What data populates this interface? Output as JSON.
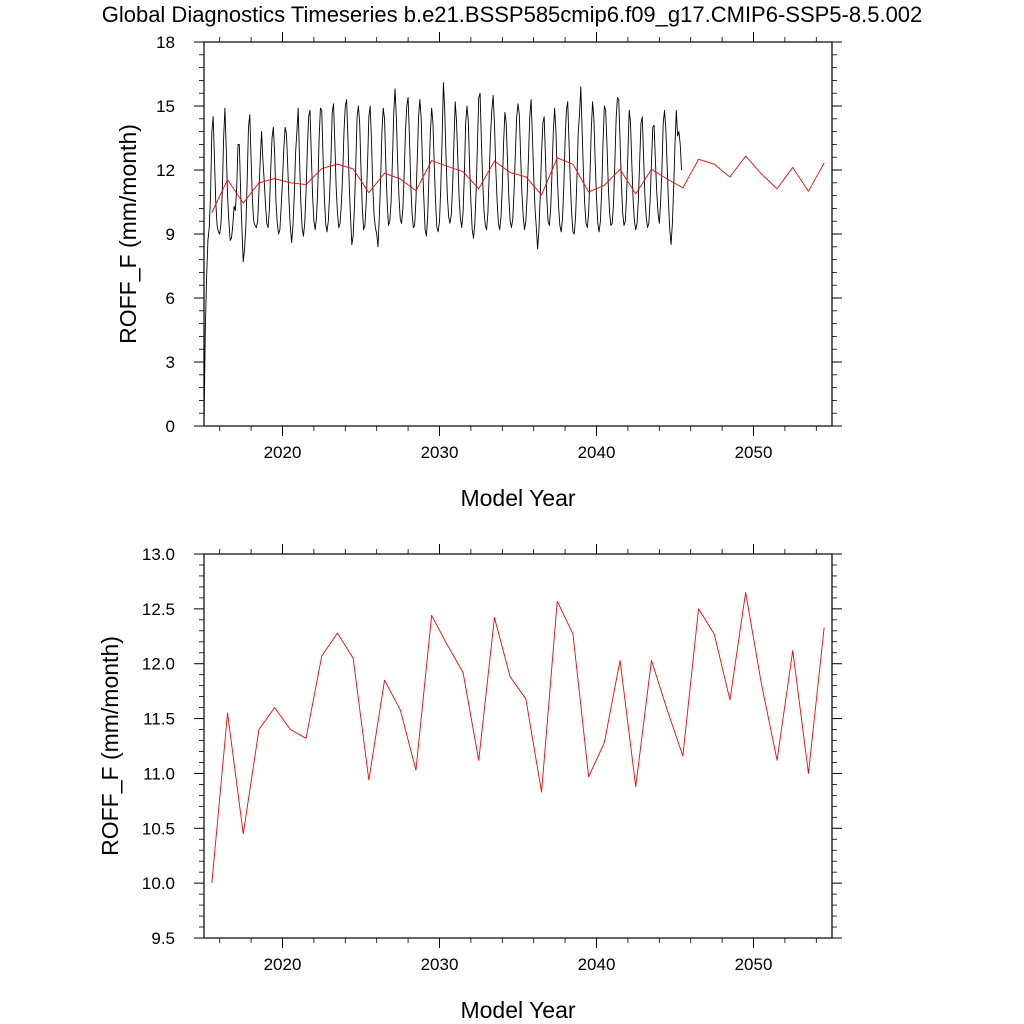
{
  "title": "Global Diagnostics Timeseries b.e21.BSSP585cmip6.f09_g17.CMIP6-SSP5-8.5.002",
  "colors": {
    "monthly": "#000000",
    "annual": "#ff0000",
    "axis": "#000000"
  },
  "chart_data": [
    {
      "type": "line",
      "xlabel": "Model Year",
      "ylabel": "ROFF_F (mm/month)",
      "xlim": [
        2015.0,
        2055.0
      ],
      "ylim": [
        0,
        18
      ],
      "x_ticks": [
        2020,
        2030,
        2040,
        2050
      ],
      "x_tick_labels": [
        "2020",
        "2030",
        "2040",
        "2050"
      ],
      "y_ticks": [
        0,
        3,
        6,
        9,
        12,
        15,
        18
      ],
      "y_tick_labels": [
        "0",
        "3",
        "6",
        "9",
        "12",
        "15",
        "18"
      ],
      "grid": false,
      "series": [
        {
          "color": "#000000",
          "x_start": 2015.0,
          "x_step": 0.083333,
          "values": [
            0.1,
            4.5,
            7.0,
            8.7,
            9.3,
            10.8,
            13.8,
            14.5,
            12.5,
            10.5,
            9.4,
            9.1,
            9.0,
            9.5,
            11.0,
            13.5,
            14.9,
            13.0,
            10.8,
            9.6,
            8.7,
            8.8,
            9.4,
            10.3,
            10.1,
            11.2,
            13.2,
            13.2,
            11.0,
            9.2,
            7.7,
            8.3,
            9.4,
            11.5,
            14.0,
            14.6,
            12.5,
            10.6,
            9.6,
            9.4,
            9.3,
            9.6,
            11.0,
            12.5,
            13.8,
            12.5,
            11.5,
            10.4,
            9.5,
            9.3,
            10.2,
            12.0,
            13.5,
            14.0,
            12.8,
            10.5,
            9.5,
            9.0,
            9.2,
            10.3,
            11.5,
            13.0,
            14.0,
            13.7,
            12.2,
            10.5,
            9.3,
            8.6,
            9.4,
            10.8,
            12.8,
            13.8,
            14.9,
            12.5,
            10.5,
            9.3,
            8.9,
            9.5,
            11.0,
            13.0,
            14.5,
            14.8,
            12.8,
            10.8,
            9.6,
            9.2,
            9.8,
            11.2,
            13.5,
            14.9,
            14.8,
            12.6,
            10.7,
            9.5,
            9.1,
            9.6,
            10.8,
            12.5,
            14.7,
            15.1,
            13.3,
            11.2,
            10.0,
            9.3,
            9.5,
            10.4,
            11.8,
            13.8,
            15.0,
            15.3,
            13.5,
            11.3,
            9.8,
            8.5,
            8.9,
            10.3,
            12.2,
            14.5,
            15.0,
            14.2,
            12.0,
            10.2,
            9.2,
            9.4,
            10.5,
            12.3,
            14.5,
            15.0,
            13.4,
            11.2,
            9.9,
            9.3,
            9.0,
            8.4,
            9.8,
            11.5,
            13.8,
            14.9,
            14.4,
            12.2,
            10.5,
            9.4,
            9.6,
            10.5,
            12.4,
            14.6,
            15.8,
            14.5,
            12.4,
            10.8,
            9.7,
            9.5,
            10.2,
            11.8,
            13.8,
            15.0,
            15.4,
            13.6,
            11.4,
            10.0,
            9.3,
            9.4,
            10.6,
            12.5,
            14.5,
            15.3,
            14.4,
            12.3,
            10.7,
            9.2,
            8.9,
            9.9,
            11.8,
            13.7,
            14.9,
            14.2,
            12.2,
            10.5,
            9.3,
            9.1,
            9.6,
            11.2,
            13.5,
            16.1,
            14.8,
            12.6,
            10.8,
            9.8,
            9.5,
            9.9,
            11.2,
            13.2,
            15.2,
            14.3,
            12.5,
            10.7,
            9.7,
            9.3,
            10.0,
            11.8,
            14.2,
            15.0,
            14.3,
            12.2,
            10.5,
            9.2,
            8.8,
            9.5,
            11.0,
            13.2,
            15.4,
            15.6,
            13.4,
            11.5,
            10.1,
            9.4,
            9.2,
            10.0,
            11.8,
            13.6,
            14.8,
            15.5,
            14.2,
            12.1,
            10.6,
            9.5,
            9.2,
            9.8,
            11.2,
            13.3,
            14.7,
            14.2,
            12.4,
            10.7,
            9.6,
            9.3,
            9.7,
            11.0,
            12.8,
            14.5,
            15.1,
            14.6,
            12.7,
            10.9,
            9.8,
            9.2,
            9.6,
            10.8,
            12.6,
            14.5,
            15.3,
            13.6,
            11.7,
            10.2,
            9.3,
            8.3,
            9.2,
            10.8,
            12.8,
            14.2,
            14.5,
            12.6,
            10.7,
            9.6,
            9.4,
            10.2,
            11.9,
            13.8,
            14.9,
            13.8,
            11.8,
            10.3,
            9.4,
            9.1,
            9.7,
            11.2,
            13.4,
            14.8,
            15.2,
            13.3,
            11.4,
            10.0,
            9.1,
            9.0,
            9.8,
            11.5,
            13.7,
            14.6,
            15.9,
            13.9,
            11.9,
            10.4,
            9.5,
            9.3,
            10.0,
            11.7,
            13.9,
            15.2,
            14.4,
            12.4,
            10.7,
            9.5,
            9.1,
            9.6,
            11.1,
            13.3,
            15.0,
            14.8,
            13.2,
            11.3,
            10.0,
            9.4,
            9.5,
            10.4,
            12.3,
            14.4,
            15.4,
            15.3,
            13.4,
            11.4,
            10.0,
            9.4,
            9.6,
            10.8,
            12.8,
            14.8,
            14.2,
            12.3,
            10.6,
            9.6,
            9.2,
            9.5,
            10.6,
            12.4,
            14.2,
            14.5,
            12.6,
            10.8,
            9.8,
            9.3,
            9.5,
            10.6,
            12.3,
            14.0,
            14.1,
            12.5,
            11.0,
            10.0,
            9.5,
            10.5,
            12.0,
            14.2,
            14.8,
            13.9,
            12.2,
            10.5,
            9.2,
            8.5,
            9.5,
            11.2,
            13.2,
            14.8,
            13.6,
            13.8,
            13.2,
            12.0
          ]
        },
        {
          "color": "#ff0000",
          "x": [
            2015.5,
            2016.5,
            2017.5,
            2018.5,
            2019.5,
            2020.5,
            2021.5,
            2022.5,
            2023.5,
            2024.5,
            2025.5,
            2026.5,
            2027.5,
            2028.5,
            2029.5,
            2030.5,
            2031.5,
            2032.5,
            2033.5,
            2034.5,
            2035.5,
            2036.5,
            2037.5,
            2038.5,
            2039.5,
            2040.5,
            2041.5,
            2042.5,
            2043.5,
            2044.5,
            2045.5,
            2046.5,
            2047.5,
            2048.5,
            2049.5,
            2050.5,
            2051.5,
            2052.5,
            2053.5,
            2054.5
          ],
          "values": [
            10.0,
            11.55,
            10.45,
            11.4,
            11.6,
            11.4,
            11.32,
            12.07,
            12.28,
            12.05,
            10.94,
            11.85,
            11.58,
            11.03,
            12.44,
            12.17,
            11.92,
            11.12,
            12.42,
            11.88,
            11.68,
            10.83,
            12.57,
            12.27,
            10.97,
            11.28,
            12.03,
            10.88,
            12.03,
            11.58,
            11.16,
            12.5,
            12.27,
            11.67,
            12.65,
            11.82,
            11.12,
            12.12,
            11.0,
            12.33
          ]
        }
      ]
    },
    {
      "type": "line",
      "xlabel": "Model Year",
      "ylabel": "ROFF_F (mm/month)",
      "xlim": [
        2015.0,
        2055.0
      ],
      "ylim": [
        9.5,
        13.0
      ],
      "x_ticks": [
        2020,
        2030,
        2040,
        2050
      ],
      "x_tick_labels": [
        "2020",
        "2030",
        "2040",
        "2050"
      ],
      "y_ticks": [
        9.5,
        10.0,
        10.5,
        11.0,
        11.5,
        12.0,
        12.5,
        13.0
      ],
      "y_tick_labels": [
        "9.5",
        "10.0",
        "10.5",
        "11.0",
        "11.5",
        "12.0",
        "12.5",
        "13.0"
      ],
      "grid": false,
      "series": [
        {
          "color": "#ff0000",
          "x": [
            2015.5,
            2016.5,
            2017.5,
            2018.5,
            2019.5,
            2020.5,
            2021.5,
            2022.5,
            2023.5,
            2024.5,
            2025.5,
            2026.5,
            2027.5,
            2028.5,
            2029.5,
            2030.5,
            2031.5,
            2032.5,
            2033.5,
            2034.5,
            2035.5,
            2036.5,
            2037.5,
            2038.5,
            2039.5,
            2040.5,
            2041.5,
            2042.5,
            2043.5,
            2044.5,
            2045.5,
            2046.5,
            2047.5,
            2048.5,
            2049.5,
            2050.5,
            2051.5,
            2052.5,
            2053.5,
            2054.5
          ],
          "values": [
            10.0,
            11.55,
            10.45,
            11.4,
            11.6,
            11.4,
            11.32,
            12.07,
            12.28,
            12.05,
            10.94,
            11.85,
            11.58,
            11.03,
            12.44,
            12.17,
            11.92,
            11.12,
            12.42,
            11.88,
            11.68,
            10.83,
            12.57,
            12.27,
            10.97,
            11.28,
            12.03,
            10.88,
            12.03,
            11.58,
            11.16,
            12.5,
            12.27,
            11.67,
            12.65,
            11.82,
            11.12,
            12.12,
            11.0,
            12.33
          ]
        }
      ]
    }
  ]
}
